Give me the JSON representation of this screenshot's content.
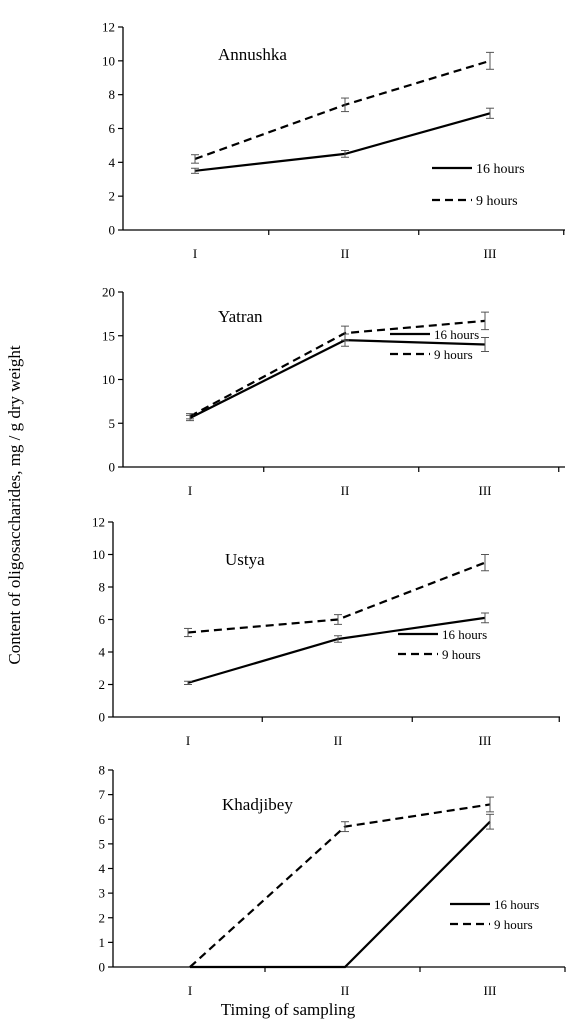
{
  "figure": {
    "ylabel": "Content of oligosaccharides,  mg / g dry weight",
    "xlabel": "Timing of sampling"
  },
  "chart_data": [
    {
      "type": "line",
      "title": "Annushka",
      "categories": [
        "I",
        "II",
        "III"
      ],
      "ylim": [
        0,
        12
      ],
      "yticks": [
        0,
        2,
        4,
        6,
        8,
        10,
        12
      ],
      "legend_position": "right",
      "series": [
        {
          "name": "16 hours",
          "style": "solid",
          "values": [
            3.5,
            4.5,
            6.9
          ],
          "errors": [
            0.15,
            0.2,
            0.3
          ]
        },
        {
          "name": "9  hours",
          "style": "dashed",
          "values": [
            4.2,
            7.4,
            10.0
          ],
          "errors": [
            0.25,
            0.4,
            0.5
          ]
        }
      ]
    },
    {
      "type": "line",
      "title": "Yatran",
      "categories": [
        "I",
        "II",
        "III"
      ],
      "ylim": [
        0,
        20
      ],
      "yticks": [
        0,
        5,
        10,
        15,
        20
      ],
      "legend_position": "right",
      "series": [
        {
          "name": "16  hours",
          "style": "solid",
          "values": [
            5.6,
            14.5,
            14.0
          ],
          "errors": [
            0.3,
            0.7,
            0.8
          ]
        },
        {
          "name": "9  hours",
          "style": "dashed",
          "values": [
            5.8,
            15.3,
            16.7
          ],
          "errors": [
            0.3,
            0.8,
            1.0
          ]
        }
      ]
    },
    {
      "type": "line",
      "title": "Ustya",
      "categories": [
        "I",
        "II",
        "III"
      ],
      "ylim": [
        0,
        12
      ],
      "yticks": [
        0,
        2,
        4,
        6,
        8,
        10,
        12
      ],
      "legend_position": "right",
      "series": [
        {
          "name": "16  hours",
          "style": "solid",
          "values": [
            2.1,
            4.8,
            6.1
          ],
          "errors": [
            0.1,
            0.2,
            0.3
          ]
        },
        {
          "name": "9  hours",
          "style": "dashed",
          "values": [
            5.2,
            6.0,
            9.5
          ],
          "errors": [
            0.25,
            0.3,
            0.5
          ]
        }
      ]
    },
    {
      "type": "line",
      "title": "Khadjibey",
      "categories": [
        "I",
        "II",
        "III"
      ],
      "ylim": [
        0,
        8
      ],
      "yticks": [
        0,
        1,
        2,
        3,
        4,
        5,
        6,
        7,
        8
      ],
      "legend_position": "right",
      "series": [
        {
          "name": "16  hours",
          "style": "solid",
          "values": [
            0,
            0,
            5.9
          ],
          "errors": [
            0,
            0,
            0.3
          ]
        },
        {
          "name": "9  hours",
          "style": "dashed",
          "values": [
            0,
            5.7,
            6.6
          ],
          "errors": [
            0,
            0.2,
            0.3
          ]
        }
      ]
    }
  ]
}
